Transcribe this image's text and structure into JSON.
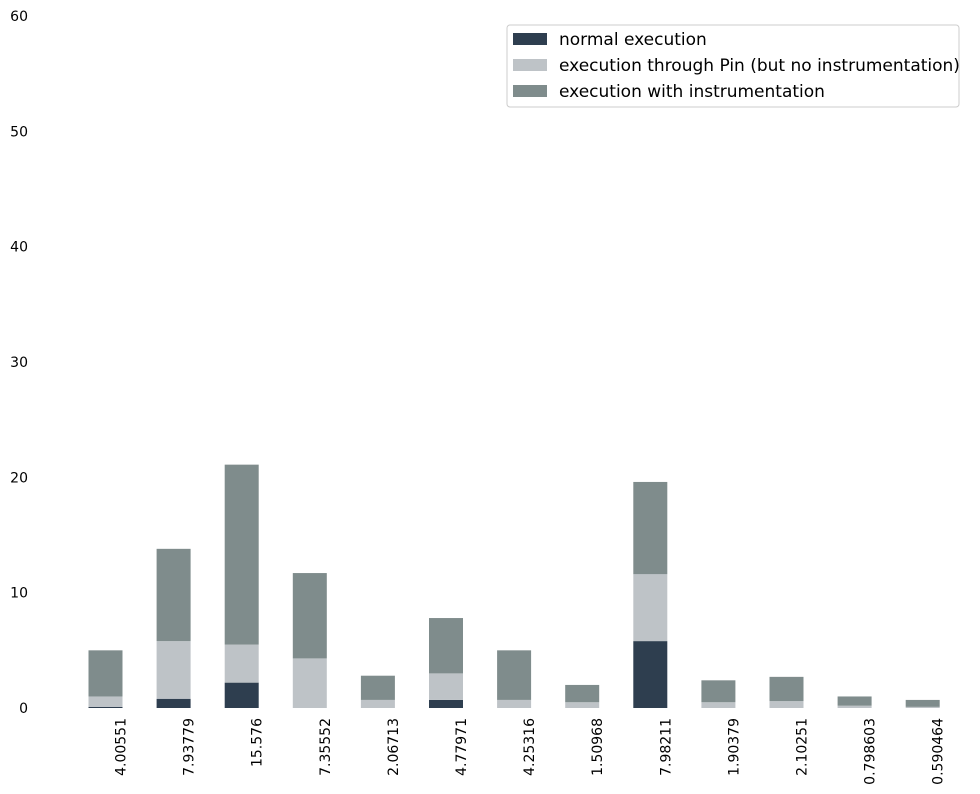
{
  "chart_data": {
    "type": "bar",
    "stacked": true,
    "categories": [
      "4.00551",
      "7.93779",
      "15.576",
      "7.35552",
      "2.06713",
      "4.77971",
      "4.25316",
      "1.50968",
      "7.98211",
      "1.90379",
      "2.10251",
      "0.798603",
      "0.590464"
    ],
    "series": [
      {
        "name": "normal execution",
        "color": "#2e3e4f",
        "values": [
          0.1,
          0.8,
          2.2,
          0.0,
          0.0,
          0.7,
          0.0,
          0.0,
          5.8,
          0.0,
          0.0,
          0.0,
          0.0
        ]
      },
      {
        "name": "execution through Pin (but no instrumentation)",
        "color": "#bec3c7",
        "values": [
          0.9,
          5.0,
          3.3,
          4.3,
          0.7,
          2.3,
          0.7,
          0.5,
          5.8,
          0.5,
          0.6,
          0.2,
          0.1
        ]
      },
      {
        "name": "execution with instrumentation",
        "color": "#7f8c8c",
        "values": [
          4.0,
          8.0,
          15.6,
          7.4,
          2.1,
          4.8,
          4.3,
          1.5,
          8.0,
          1.9,
          2.1,
          0.8,
          0.6
        ]
      }
    ],
    "yticks": [
      "0",
      "10",
      "20",
      "30",
      "40",
      "50",
      "60"
    ],
    "ylim": [
      0,
      60
    ],
    "grid": false,
    "legend_position": "top-right",
    "title": "",
    "xlabel": "",
    "ylabel": ""
  }
}
